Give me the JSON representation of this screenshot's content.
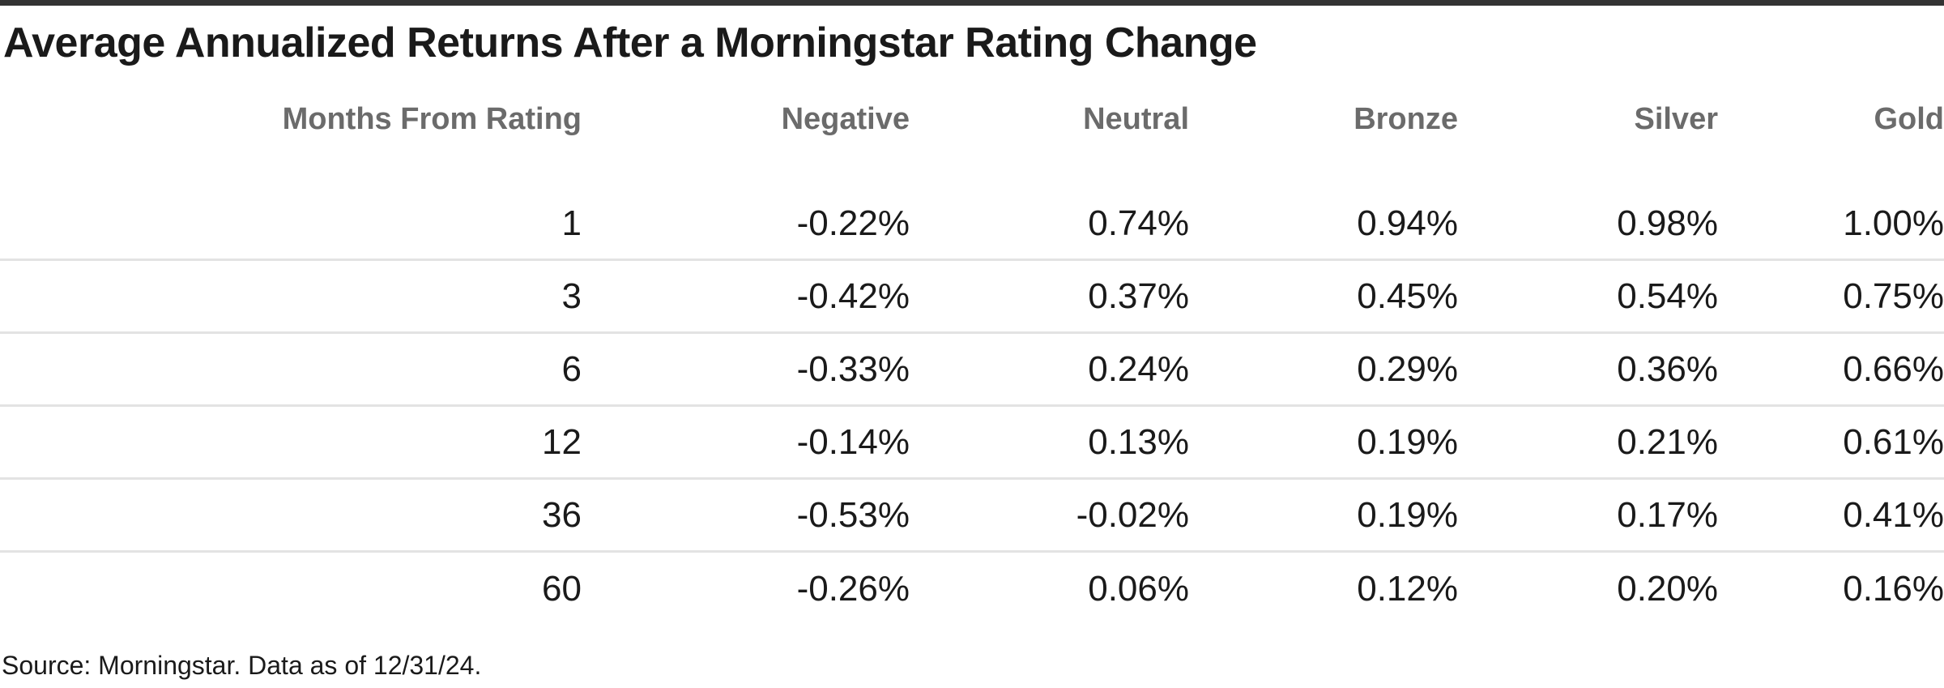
{
  "page": {
    "title": "Average Annualized Returns After a Morningstar Rating Change",
    "source_note": "Source: Morningstar. Data as of 12/31/24."
  },
  "colors": {
    "top_bar": "#333333",
    "title_text": "#1a1a1a",
    "header_text": "#6b6b6b",
    "cell_text": "#1a1a1a",
    "row_divider": "#e3e3e3",
    "background": "#ffffff"
  },
  "chart_data": {
    "type": "table",
    "title": "Average Annualized Returns After a Morningstar Rating Change",
    "columns": [
      "Months From Rating",
      "Negative",
      "Neutral",
      "Bronze",
      "Silver",
      "Gold"
    ],
    "rows": [
      [
        "1",
        "-0.22%",
        "0.74%",
        "0.94%",
        "0.98%",
        "1.00%"
      ],
      [
        "3",
        "-0.42%",
        "0.37%",
        "0.45%",
        "0.54%",
        "0.75%"
      ],
      [
        "6",
        "-0.33%",
        "0.24%",
        "0.29%",
        "0.36%",
        "0.66%"
      ],
      [
        "12",
        "-0.14%",
        "0.13%",
        "0.19%",
        "0.21%",
        "0.61%"
      ],
      [
        "36",
        "-0.53%",
        "-0.02%",
        "0.19%",
        "0.17%",
        "0.41%"
      ],
      [
        "60",
        "-0.26%",
        "0.06%",
        "0.12%",
        "0.20%",
        "0.16%"
      ]
    ],
    "rows_numeric": {
      "months_from_rating": [
        1,
        3,
        6,
        12,
        36,
        60
      ],
      "series": [
        {
          "name": "Negative",
          "values": [
            -0.22,
            -0.42,
            -0.33,
            -0.14,
            -0.53,
            -0.26
          ]
        },
        {
          "name": "Neutral",
          "values": [
            0.74,
            0.37,
            0.24,
            0.13,
            -0.02,
            0.06
          ]
        },
        {
          "name": "Bronze",
          "values": [
            0.94,
            0.45,
            0.29,
            0.19,
            0.19,
            0.12
          ]
        },
        {
          "name": "Silver",
          "values": [
            0.98,
            0.54,
            0.36,
            0.21,
            0.17,
            0.2
          ]
        },
        {
          "name": "Gold",
          "values": [
            1.0,
            0.75,
            0.66,
            0.61,
            0.41,
            0.16
          ]
        }
      ],
      "unit": "percent"
    },
    "source": "Source: Morningstar. Data as of 12/31/24."
  }
}
